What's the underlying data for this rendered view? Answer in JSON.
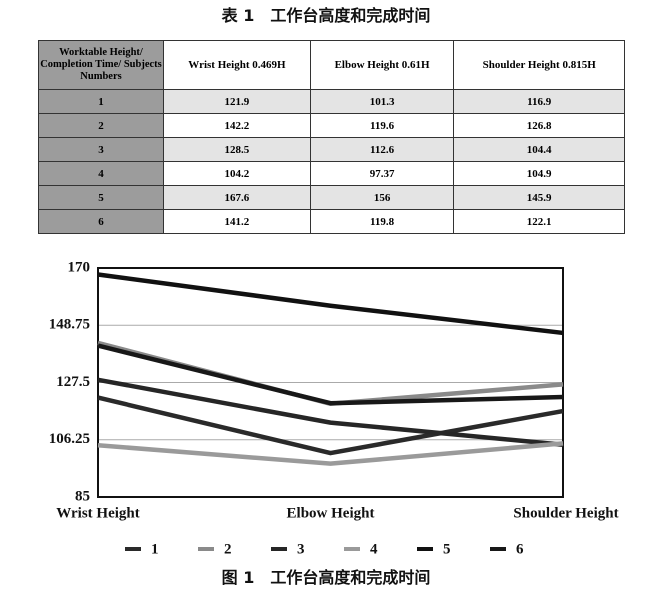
{
  "caption_top": "表 1　工作台高度和完成时间",
  "table": {
    "header": [
      "Worktable Height/ Completion Time/ Subjects Numbers",
      "Wrist Height 0.469H",
      "Elbow Height 0.61H",
      "Shoulder Height 0.815H"
    ],
    "rows": [
      [
        "1",
        "121.9",
        "101.3",
        "116.9"
      ],
      [
        "2",
        "142.2",
        "119.6",
        "126.8"
      ],
      [
        "3",
        "128.5",
        "112.6",
        "104.4"
      ],
      [
        "4",
        "104.2",
        "97.37",
        "104.9"
      ],
      [
        "5",
        "167.6",
        "156",
        "145.9"
      ],
      [
        "6",
        "141.2",
        "119.8",
        "122.1"
      ]
    ]
  },
  "chart_data": {
    "type": "line",
    "categories": [
      "Wrist Height",
      "Elbow Height",
      "Shoulder Height"
    ],
    "series": [
      {
        "name": "1",
        "color": "#2a2a2a",
        "values": [
          121.9,
          101.3,
          116.9
        ]
      },
      {
        "name": "2",
        "color": "#8a8a8a",
        "values": [
          142.2,
          119.6,
          126.8
        ]
      },
      {
        "name": "3",
        "color": "#262626",
        "values": [
          128.5,
          112.6,
          104.4
        ]
      },
      {
        "name": "4",
        "color": "#9a9a9a",
        "values": [
          104.2,
          97.37,
          104.9
        ]
      },
      {
        "name": "5",
        "color": "#111111",
        "values": [
          167.6,
          156,
          145.9
        ]
      },
      {
        "name": "6",
        "color": "#181818",
        "values": [
          141.2,
          119.8,
          122.1
        ]
      }
    ],
    "ylim": [
      85,
      170
    ],
    "yticks": [
      85,
      106.25,
      127.5,
      148.75,
      170
    ],
    "grid": true
  },
  "caption_bottom": "图 1　工作台高度和完成时间"
}
